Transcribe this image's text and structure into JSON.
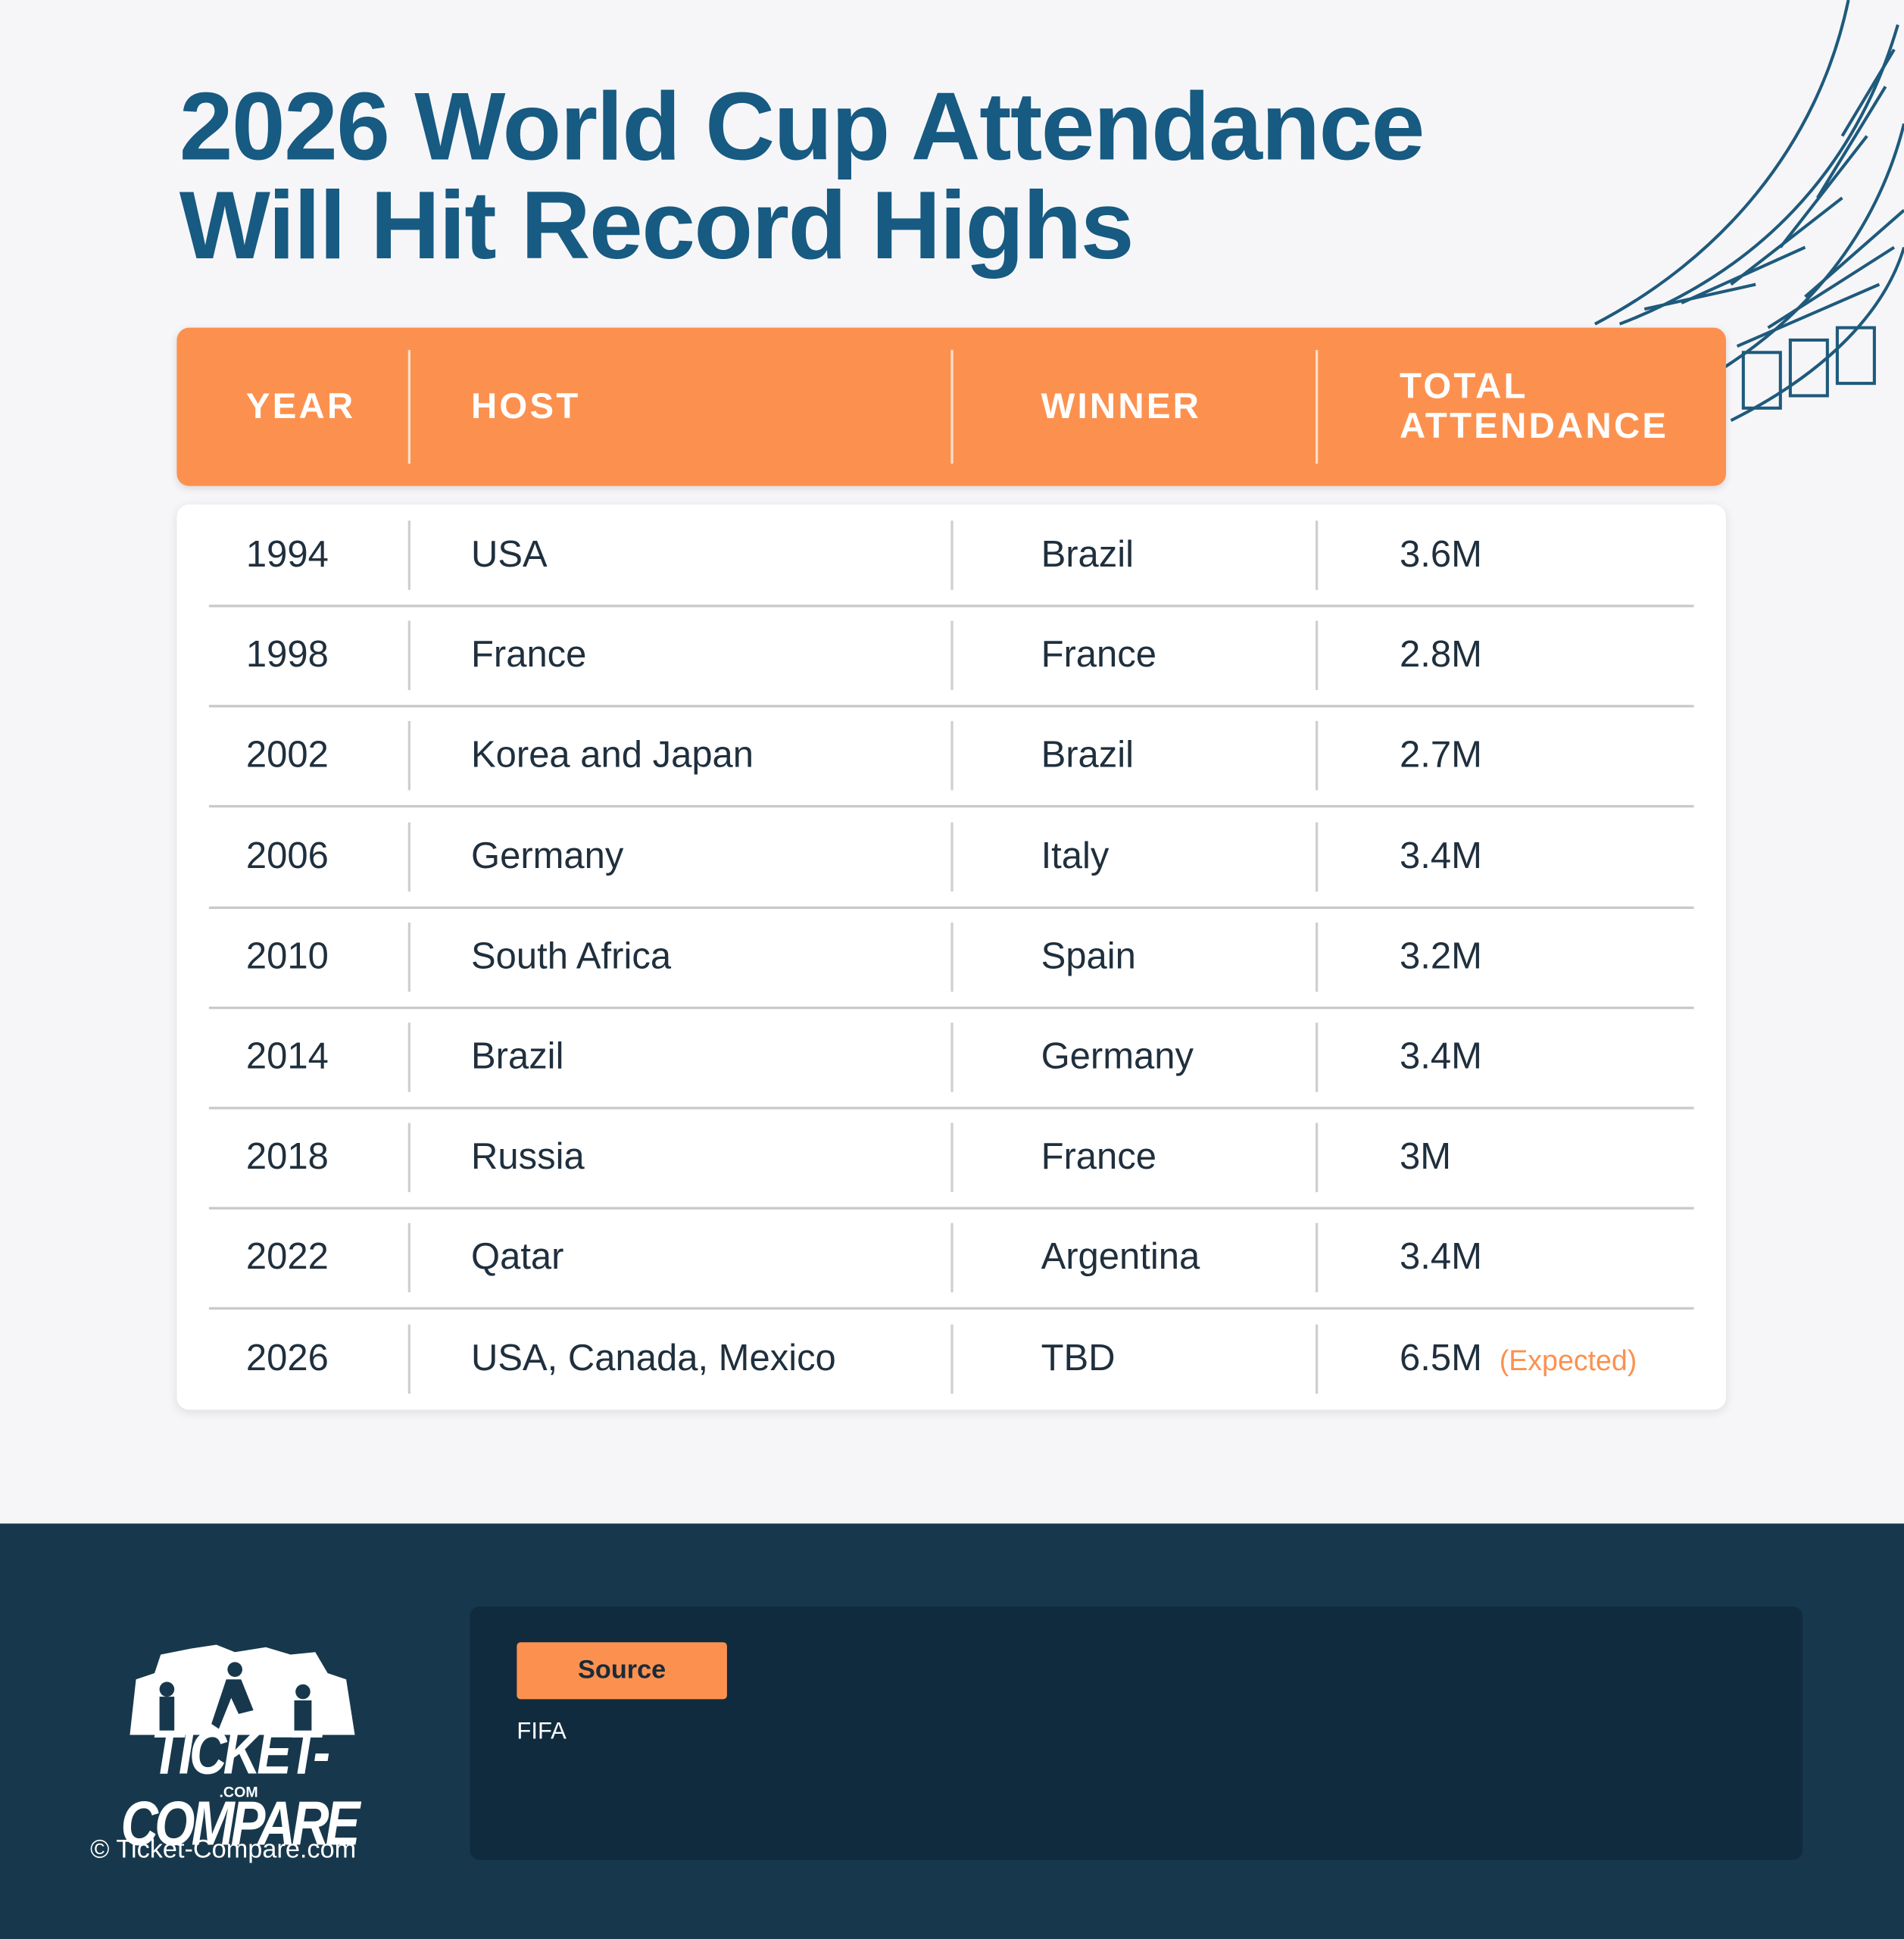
{
  "header": {
    "title": "2026 World Cup Attendance Will Hit Record Highs"
  },
  "table": {
    "columns": [
      "YEAR",
      "HOST",
      "WINNER",
      "TOTAL ATTENDANCE"
    ],
    "rows": [
      [
        "1994",
        "USA",
        "Brazil",
        "3.6M"
      ],
      [
        "1998",
        "France",
        "France",
        "2.8M"
      ],
      [
        "2002",
        "Korea and Japan",
        "Brazil",
        "2.7M"
      ],
      [
        "2006",
        "Germany",
        "Italy",
        "3.4M"
      ],
      [
        "2010",
        "South Africa",
        "Spain",
        "3.2M"
      ],
      [
        "2014",
        "Brazil",
        "Germany",
        "3.4M"
      ],
      [
        "2018",
        "Russia",
        "France",
        "3M"
      ],
      [
        "2022",
        "Qatar",
        "Argentina",
        "3.4M"
      ],
      [
        "2026",
        "USA, Canada, Mexico",
        "TBD",
        "6.5M"
      ]
    ],
    "note": "(Expected)"
  },
  "footer": {
    "logo": "TICKET-COMPARE",
    "logo_domain": ".COM",
    "copyright": "© Ticket-Compare.com",
    "source_label": "Source",
    "source": "FIFA"
  }
}
